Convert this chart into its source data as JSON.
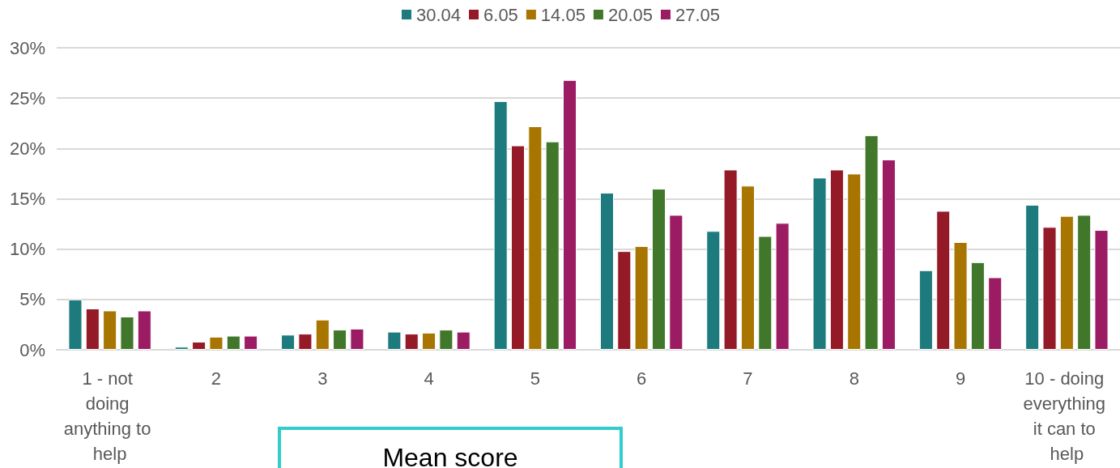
{
  "chart_data": {
    "type": "bar",
    "categories": [
      "1 - not doing anything to help",
      "2",
      "3",
      "4",
      "5",
      "6",
      "7",
      "8",
      "9",
      "10 - doing everything it can to help"
    ],
    "series": [
      {
        "name": "30.04",
        "color": "#1d7b7e",
        "values": [
          5.0,
          0.3,
          1.5,
          1.8,
          24.7,
          15.6,
          11.8,
          17.1,
          7.9,
          14.4
        ]
      },
      {
        "name": "6.05",
        "color": "#951a28",
        "values": [
          4.1,
          0.8,
          1.6,
          1.6,
          20.3,
          9.8,
          17.9,
          17.9,
          13.8,
          12.2
        ]
      },
      {
        "name": "14.05",
        "color": "#a87500",
        "values": [
          3.9,
          1.3,
          3.0,
          1.7,
          22.2,
          10.3,
          16.3,
          17.5,
          10.7,
          13.3
        ]
      },
      {
        "name": "20.05",
        "color": "#40772a",
        "values": [
          3.3,
          1.4,
          2.0,
          2.0,
          20.7,
          16.0,
          11.3,
          21.3,
          8.7,
          13.4
        ]
      },
      {
        "name": "27.05",
        "color": "#9b1c63",
        "values": [
          3.9,
          1.4,
          2.1,
          1.8,
          26.8,
          13.4,
          12.6,
          18.9,
          7.2,
          11.9
        ]
      }
    ],
    "ylim": [
      0,
      30
    ],
    "yticks": [
      {
        "value": 0,
        "label": "0%"
      },
      {
        "value": 5,
        "label": "5%"
      },
      {
        "value": 10,
        "label": "10%"
      },
      {
        "value": 15,
        "label": "15%"
      },
      {
        "value": 20,
        "label": "20%"
      },
      {
        "value": 25,
        "label": "25%"
      },
      {
        "value": 30,
        "label": "30%"
      }
    ],
    "grid": "y",
    "legend": "top",
    "annotations": [
      "Mean score"
    ]
  }
}
